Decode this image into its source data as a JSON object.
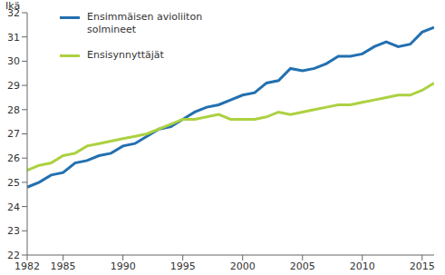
{
  "chart_data": {
    "type": "line",
    "y_label": "Ikä",
    "x": [
      1982,
      1983,
      1984,
      1985,
      1986,
      1987,
      1988,
      1989,
      1990,
      1991,
      1992,
      1993,
      1994,
      1995,
      1996,
      1997,
      1998,
      1999,
      2000,
      2001,
      2002,
      2003,
      2004,
      2005,
      2006,
      2007,
      2008,
      2009,
      2010,
      2011,
      2012,
      2013,
      2014,
      2015,
      2016
    ],
    "series": [
      {
        "name": "Ensimmäisen avioliiton solmineet",
        "color": "#2270b0",
        "values": [
          24.8,
          25.0,
          25.3,
          25.4,
          25.8,
          25.9,
          26.1,
          26.2,
          26.5,
          26.6,
          26.9,
          27.2,
          27.3,
          27.6,
          27.9,
          28.1,
          28.2,
          28.4,
          28.6,
          28.7,
          29.1,
          29.2,
          29.7,
          29.6,
          29.7,
          29.9,
          30.2,
          30.2,
          30.3,
          30.6,
          30.8,
          30.6,
          30.7,
          31.2,
          31.4
        ]
      },
      {
        "name": "Ensisynnyttäjät",
        "color": "#acd141",
        "values": [
          25.5,
          25.7,
          25.8,
          26.1,
          26.2,
          26.5,
          26.6,
          26.7,
          26.8,
          26.9,
          27.0,
          27.2,
          27.4,
          27.6,
          27.6,
          27.7,
          27.8,
          27.6,
          27.6,
          27.6,
          27.7,
          27.9,
          27.8,
          27.9,
          28.0,
          28.1,
          28.2,
          28.2,
          28.3,
          28.4,
          28.5,
          28.6,
          28.6,
          28.8,
          29.1
        ]
      }
    ],
    "xlim": [
      1982,
      2016
    ],
    "xticks": [
      1982,
      1985,
      1990,
      1995,
      2000,
      2005,
      2010,
      2015
    ],
    "ylim": [
      22,
      32
    ],
    "yticks": [
      22,
      23,
      24,
      25,
      26,
      27,
      28,
      29,
      30,
      31,
      32
    ],
    "grid": false,
    "legend": "top-left"
  }
}
